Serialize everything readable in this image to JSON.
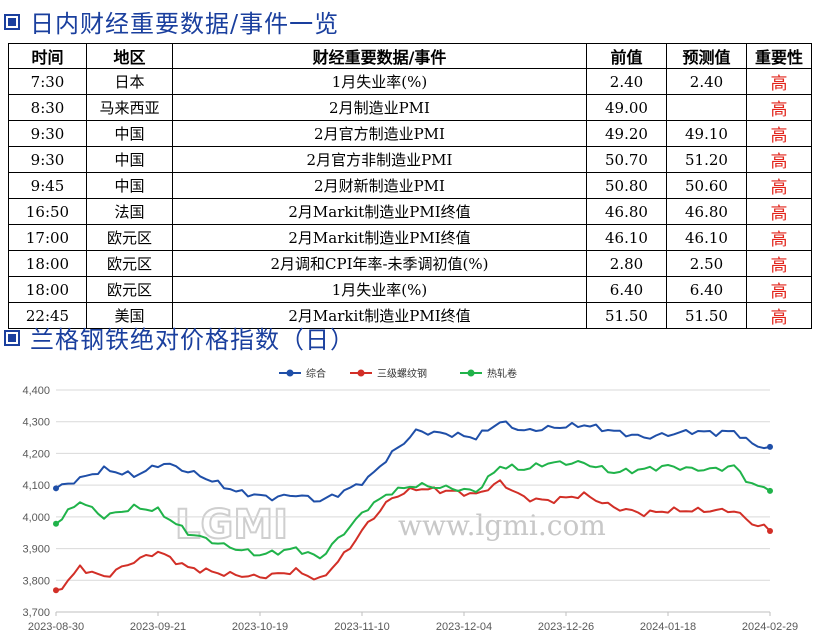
{
  "section1": {
    "title": "日内财经重要数据/事件一览"
  },
  "table": {
    "headers": [
      "时间",
      "地区",
      "财经重要数据/事件",
      "前值",
      "预测值",
      "重要性"
    ],
    "rows": [
      [
        "7:30",
        "日本",
        "1月失业率(%)",
        "2.40",
        "2.40",
        "高"
      ],
      [
        "8:30",
        "马来西亚",
        "2月制造业PMI",
        "49.00",
        "",
        "高"
      ],
      [
        "9:30",
        "中国",
        "2月官方制造业PMI",
        "49.20",
        "49.10",
        "高"
      ],
      [
        "9:30",
        "中国",
        "2月官方非制造业PMI",
        "50.70",
        "51.20",
        "高"
      ],
      [
        "9:45",
        "中国",
        "2月财新制造业PMI",
        "50.80",
        "50.60",
        "高"
      ],
      [
        "16:50",
        "法国",
        "2月Markit制造业PMI终值",
        "46.80",
        "46.80",
        "高"
      ],
      [
        "17:00",
        "欧元区",
        "2月Markit制造业PMI终值",
        "46.10",
        "46.10",
        "高"
      ],
      [
        "18:00",
        "欧元区",
        "2月调和CPI年率-未季调初值(%)",
        "2.80",
        "2.50",
        "高"
      ],
      [
        "18:00",
        "欧元区",
        "1月失业率(%)",
        "6.40",
        "6.40",
        "高"
      ],
      [
        "22:45",
        "美国",
        "2月Markit制造业PMI终值",
        "51.50",
        "51.50",
        "高"
      ]
    ]
  },
  "section2": {
    "title": "兰格钢铁绝对价格指数（日）"
  },
  "watermark": {
    "logo": "LGMI",
    "url": "www.lgmi.com"
  },
  "chart_data": {
    "type": "line",
    "title": "",
    "xlabel": "",
    "ylabel": "",
    "x_tick_labels": [
      "2023-08-30",
      "2023-09-21",
      "2023-10-19",
      "2023-11-10",
      "2023-12-04",
      "2023-12-26",
      "2024-01-18",
      "2024-02-29"
    ],
    "y_ticks": [
      "3,700",
      "3,800",
      "3,900",
      "4,000",
      "4,100",
      "4,200",
      "4,300",
      "4,400"
    ],
    "ylim": [
      3700,
      4400
    ],
    "grid": "horizontal",
    "legend_position": "top-center",
    "n_points": 120,
    "series": [
      {
        "name": "综合",
        "color": "#1f4fa8",
        "points": [
          [
            0,
            4090
          ],
          [
            4,
            4120
          ],
          [
            8,
            4150
          ],
          [
            13,
            4130
          ],
          [
            18,
            4170
          ],
          [
            24,
            4130
          ],
          [
            30,
            4080
          ],
          [
            36,
            4060
          ],
          [
            40,
            4070
          ],
          [
            44,
            4050
          ],
          [
            48,
            4080
          ],
          [
            52,
            4120
          ],
          [
            56,
            4200
          ],
          [
            60,
            4270
          ],
          [
            66,
            4260
          ],
          [
            70,
            4250
          ],
          [
            74,
            4300
          ],
          [
            78,
            4270
          ],
          [
            82,
            4280
          ],
          [
            88,
            4290
          ],
          [
            93,
            4270
          ],
          [
            98,
            4250
          ],
          [
            102,
            4260
          ],
          [
            106,
            4270
          ],
          [
            110,
            4265
          ],
          [
            113,
            4270
          ],
          [
            116,
            4230
          ],
          [
            119,
            4215
          ]
        ]
      },
      {
        "name": "三级螺纹钢",
        "color": "#d22f27",
        "points": [
          [
            0,
            3760
          ],
          [
            4,
            3840
          ],
          [
            8,
            3810
          ],
          [
            13,
            3860
          ],
          [
            17,
            3890
          ],
          [
            22,
            3840
          ],
          [
            28,
            3820
          ],
          [
            34,
            3810
          ],
          [
            40,
            3830
          ],
          [
            44,
            3800
          ],
          [
            48,
            3880
          ],
          [
            52,
            3980
          ],
          [
            56,
            4060
          ],
          [
            60,
            4090
          ],
          [
            66,
            4080
          ],
          [
            70,
            4070
          ],
          [
            74,
            4110
          ],
          [
            78,
            4060
          ],
          [
            82,
            4050
          ],
          [
            88,
            4070
          ],
          [
            93,
            4030
          ],
          [
            98,
            4010
          ],
          [
            102,
            4020
          ],
          [
            106,
            4020
          ],
          [
            110,
            4020
          ],
          [
            113,
            4020
          ],
          [
            116,
            3980
          ],
          [
            119,
            3960
          ]
        ]
      },
      {
        "name": "热轧卷",
        "color": "#20b34a",
        "points": [
          [
            0,
            3980
          ],
          [
            4,
            4050
          ],
          [
            8,
            4000
          ],
          [
            13,
            4030
          ],
          [
            17,
            4020
          ],
          [
            22,
            3950
          ],
          [
            28,
            3910
          ],
          [
            34,
            3880
          ],
          [
            40,
            3900
          ],
          [
            44,
            3870
          ],
          [
            48,
            3950
          ],
          [
            52,
            4030
          ],
          [
            56,
            4080
          ],
          [
            60,
            4100
          ],
          [
            66,
            4090
          ],
          [
            70,
            4080
          ],
          [
            74,
            4160
          ],
          [
            78,
            4150
          ],
          [
            82,
            4170
          ],
          [
            88,
            4170
          ],
          [
            93,
            4140
          ],
          [
            98,
            4150
          ],
          [
            102,
            4160
          ],
          [
            106,
            4150
          ],
          [
            110,
            4150
          ],
          [
            113,
            4160
          ],
          [
            116,
            4100
          ],
          [
            119,
            4090
          ]
        ]
      }
    ]
  }
}
